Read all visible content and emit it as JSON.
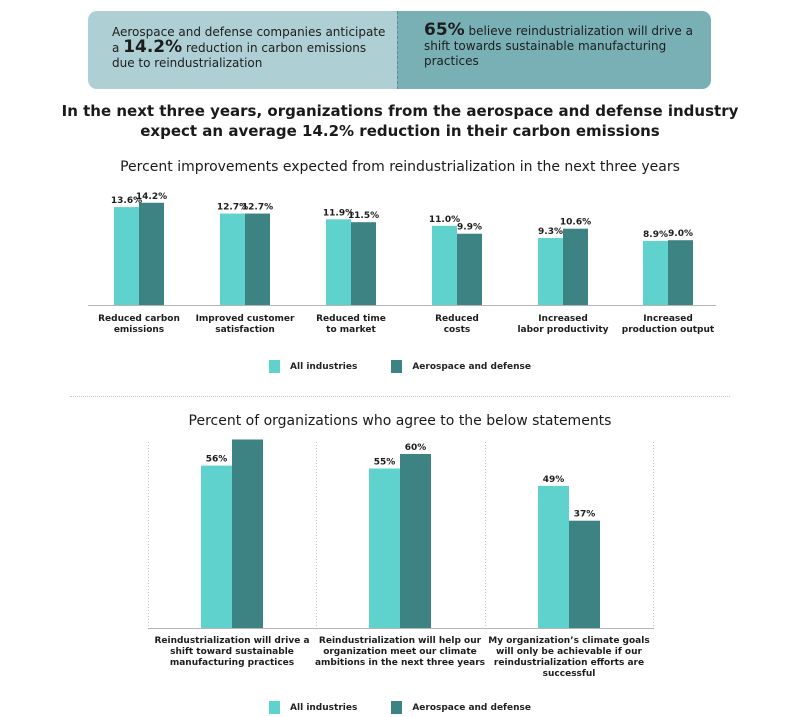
{
  "banner": {
    "left_pre": "Aerospace and defense companies anticipate a",
    "left_value": "14.2%",
    "left_post": "reduction in carbon emissions due to reindustrialization",
    "right_value": "65%",
    "right_text": "believe reindustrialization will drive a shift towards sustainable manufacturing practices"
  },
  "headline": "In the next three years, organizations from the aerospace and defense industry expect an average 14.2% reduction in their carbon emissions",
  "colors": {
    "all_industries": "#5fd2ce",
    "aerospace_defense": "#3e8383"
  },
  "legend1": [
    "All industries",
    "Aerospace and defense"
  ],
  "legend2": [
    "All industries",
    "Aerospace and defense"
  ],
  "chart_data": [
    {
      "type": "bar",
      "title": "Percent improvements expected from reindustrialization in the next three years",
      "categories": [
        [
          "Reduced carbon",
          "emissions"
        ],
        [
          "Improved customer",
          "satisfaction"
        ],
        [
          "Reduced time",
          "to market"
        ],
        [
          "Reduced",
          "costs"
        ],
        [
          "Increased",
          "labor productivity"
        ],
        [
          "Increased",
          "production output"
        ]
      ],
      "series": [
        {
          "name": "All industries",
          "values": [
            13.6,
            12.7,
            11.9,
            11.0,
            9.3,
            8.9
          ]
        },
        {
          "name": "Aerospace and defense",
          "values": [
            14.2,
            12.7,
            11.5,
            9.9,
            10.6,
            9.0
          ]
        }
      ],
      "value_suffix": "%",
      "legend": "bottom",
      "grid": false
    },
    {
      "type": "bar",
      "title": "Percent of organizations who agree to the below statements",
      "categories": [
        [
          "Reindustrialization will drive a",
          "shift toward sustainable",
          "manufacturing practices"
        ],
        [
          "Reindustrialization will help our",
          "organization meet our climate",
          "ambitions in the next three years"
        ],
        [
          "My organization’s climate goals",
          "will only be achievable if our",
          "reindustrialization efforts are",
          "successful"
        ]
      ],
      "series": [
        {
          "name": "All industries",
          "values": [
            56,
            55,
            49
          ]
        },
        {
          "name": "Aerospace and defense",
          "values": [
            65,
            60,
            37
          ]
        }
      ],
      "value_suffix": "%",
      "legend": "bottom",
      "grid": false
    }
  ]
}
